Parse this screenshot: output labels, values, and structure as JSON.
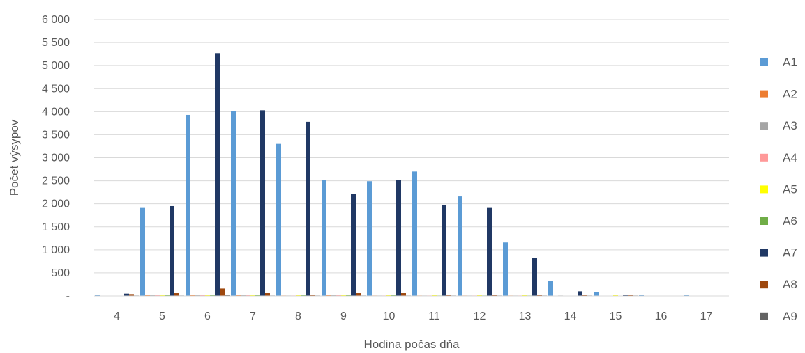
{
  "chart_data": {
    "type": "bar",
    "xlabel": "Hodina počas dňa",
    "ylabel": "Počet výsypov",
    "ylim": [
      0,
      6000
    ],
    "y_ticks": [
      {
        "value": 0,
        "label": "-"
      },
      {
        "value": 500,
        "label": "500"
      },
      {
        "value": 1000,
        "label": "1 000"
      },
      {
        "value": 1500,
        "label": "1 500"
      },
      {
        "value": 2000,
        "label": "2 000"
      },
      {
        "value": 2500,
        "label": "2 500"
      },
      {
        "value": 3000,
        "label": "3 000"
      },
      {
        "value": 3500,
        "label": "3 500"
      },
      {
        "value": 4000,
        "label": "4 000"
      },
      {
        "value": 4500,
        "label": "4 500"
      },
      {
        "value": 5000,
        "label": "5 000"
      },
      {
        "value": 5500,
        "label": "5 500"
      },
      {
        "value": 6000,
        "label": "6 000"
      }
    ],
    "grid": true,
    "legend_position": "right",
    "categories": [
      "4",
      "5",
      "6",
      "7",
      "8",
      "9",
      "10",
      "11",
      "12",
      "13",
      "14",
      "15",
      "16",
      "17"
    ],
    "series": [
      {
        "name": "A1",
        "color": "#5B9BD5",
        "values": [
          30,
          1910,
          3930,
          4020,
          3300,
          2510,
          2490,
          2700,
          2160,
          1160,
          330,
          90,
          30,
          30
        ]
      },
      {
        "name": "A2",
        "color": "#ED7D31",
        "values": [
          0,
          20,
          20,
          20,
          10,
          20,
          10,
          10,
          10,
          10,
          0,
          0,
          0,
          0
        ]
      },
      {
        "name": "A3",
        "color": "#A5A5A5",
        "values": [
          0,
          20,
          20,
          20,
          10,
          20,
          10,
          10,
          10,
          10,
          10,
          0,
          0,
          0
        ]
      },
      {
        "name": "A4",
        "color": "#FF9999",
        "values": [
          0,
          20,
          20,
          20,
          10,
          20,
          10,
          10,
          10,
          10,
          0,
          0,
          0,
          0
        ]
      },
      {
        "name": "A5",
        "color": "#FFFF00",
        "values": [
          0,
          20,
          20,
          20,
          20,
          20,
          20,
          20,
          20,
          20,
          0,
          20,
          0,
          0
        ]
      },
      {
        "name": "A6",
        "color": "#70AD47",
        "values": [
          0,
          20,
          20,
          20,
          20,
          20,
          20,
          10,
          10,
          10,
          0,
          0,
          0,
          0
        ]
      },
      {
        "name": "A7",
        "color": "#203864",
        "values": [
          50,
          1950,
          5270,
          4030,
          3780,
          2210,
          2520,
          1980,
          1910,
          820,
          100,
          20,
          0,
          0
        ]
      },
      {
        "name": "A8",
        "color": "#9E480E",
        "values": [
          40,
          60,
          160,
          60,
          20,
          60,
          60,
          20,
          20,
          20,
          30,
          30,
          0,
          0
        ]
      },
      {
        "name": "A9",
        "color": "#636363",
        "values": [
          10,
          10,
          20,
          10,
          10,
          10,
          10,
          10,
          10,
          10,
          10,
          10,
          0,
          0
        ]
      }
    ]
  }
}
